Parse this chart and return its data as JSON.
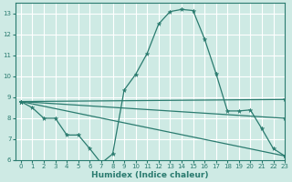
{
  "xlabel": "Humidex (Indice chaleur)",
  "xlim": [
    -0.5,
    23
  ],
  "ylim": [
    6,
    13.5
  ],
  "yticks": [
    6,
    7,
    8,
    9,
    10,
    11,
    12,
    13
  ],
  "xticks": [
    0,
    1,
    2,
    3,
    4,
    5,
    6,
    7,
    8,
    9,
    10,
    11,
    12,
    13,
    14,
    15,
    16,
    17,
    18,
    19,
    20,
    21,
    22,
    23
  ],
  "bg_color": "#ceeae4",
  "grid_color": "#ffffff",
  "line_color": "#2a7b6f",
  "lines": [
    {
      "x": [
        0,
        1,
        2,
        3,
        4,
        5,
        6,
        7,
        8,
        9,
        10,
        11,
        12,
        13,
        14,
        15,
        16,
        17,
        18,
        19,
        20,
        21,
        22,
        23
      ],
      "y": [
        8.8,
        8.5,
        8.0,
        8.0,
        7.2,
        7.2,
        6.55,
        5.85,
        6.3,
        9.35,
        10.1,
        11.1,
        12.5,
        13.1,
        13.2,
        13.15,
        11.8,
        10.15,
        8.35,
        8.35,
        8.4,
        7.5,
        6.55,
        6.2
      ]
    },
    {
      "x": [
        0,
        23
      ],
      "y": [
        8.8,
        8.9
      ]
    },
    {
      "x": [
        0,
        23
      ],
      "y": [
        8.8,
        6.2
      ]
    },
    {
      "x": [
        0,
        23
      ],
      "y": [
        8.8,
        8.0
      ]
    }
  ]
}
